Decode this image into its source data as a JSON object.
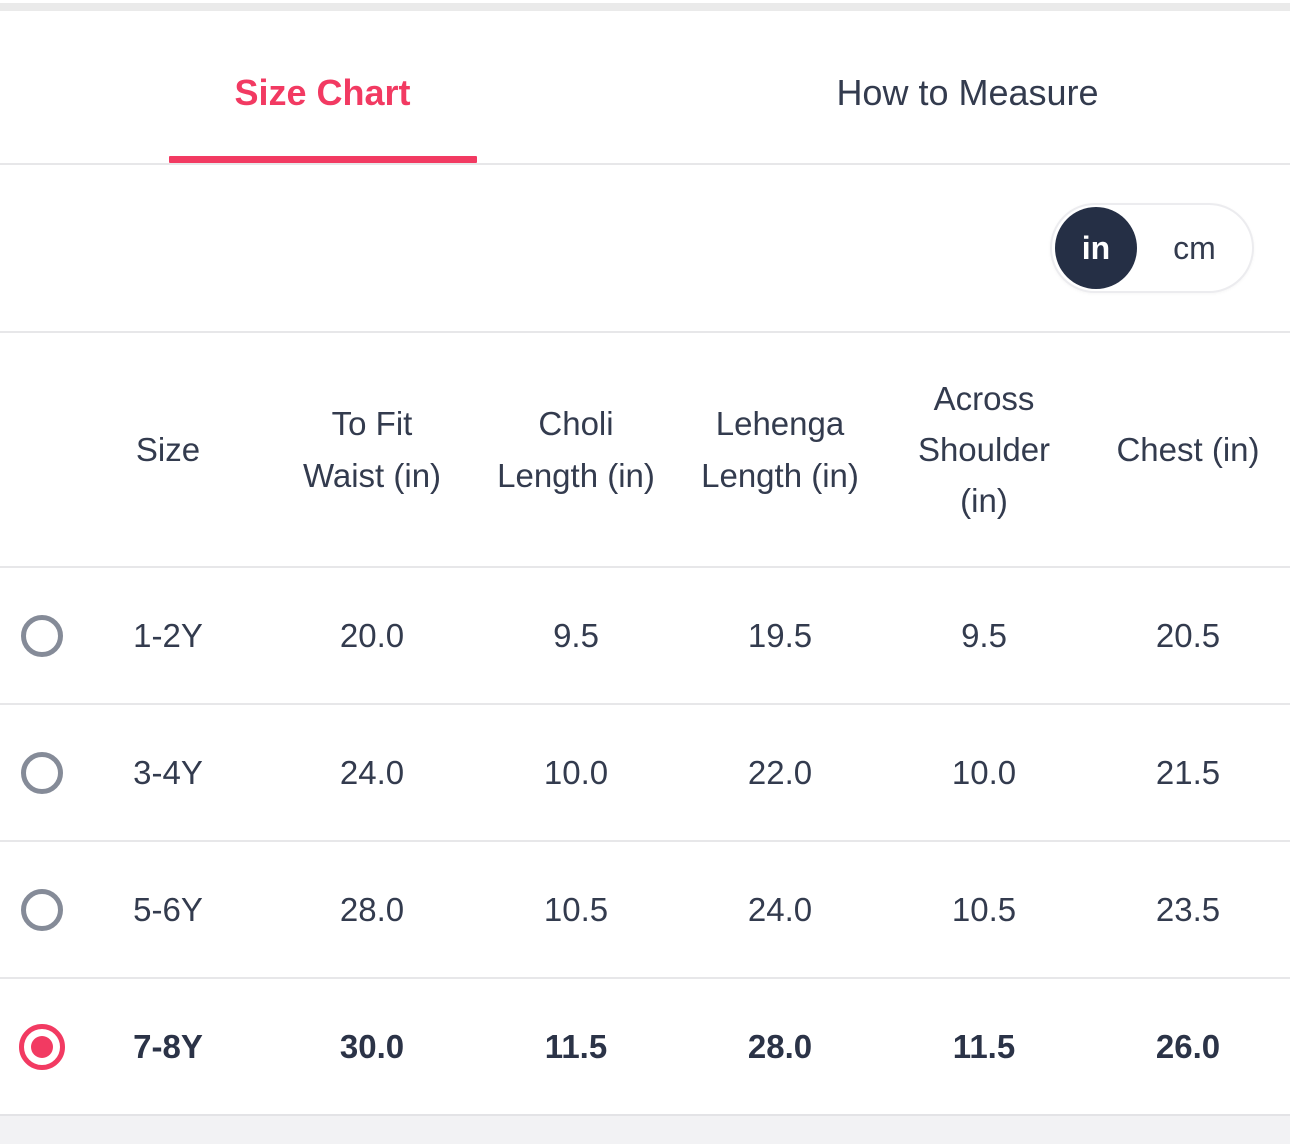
{
  "tabs": [
    {
      "label": "Size Chart",
      "active": true
    },
    {
      "label": "How to Measure",
      "active": false
    }
  ],
  "unit_toggle": {
    "selected": "in",
    "options": [
      {
        "label": "in",
        "selected": true
      },
      {
        "label": "cm",
        "selected": false
      }
    ]
  },
  "table": {
    "columns": [
      "Size",
      "To Fit Waist (in)",
      "Choli Length (in)",
      "Lehenga Length (in)",
      "Across Shoulder (in)",
      "Chest (in)"
    ],
    "rows": [
      {
        "size": "1-2Y",
        "to_fit_waist": "20.0",
        "choli_length": "9.5",
        "lehenga_length": "19.5",
        "across_shoulder": "9.5",
        "chest": "20.5",
        "selected": false
      },
      {
        "size": "3-4Y",
        "to_fit_waist": "24.0",
        "choli_length": "10.0",
        "lehenga_length": "22.0",
        "across_shoulder": "10.0",
        "chest": "21.5",
        "selected": false
      },
      {
        "size": "5-6Y",
        "to_fit_waist": "28.0",
        "choli_length": "10.5",
        "lehenga_length": "24.0",
        "across_shoulder": "10.5",
        "chest": "23.5",
        "selected": false
      },
      {
        "size": "7-8Y",
        "to_fit_waist": "30.0",
        "choli_length": "11.5",
        "lehenga_length": "28.0",
        "across_shoulder": "11.5",
        "chest": "26.0",
        "selected": true
      }
    ]
  },
  "colors": {
    "accent": "#F23A62",
    "text_dark": "#333B4E",
    "toggle_dark": "#252F45",
    "divider": "#E7E7E9",
    "radio_unselected": "#858B98"
  }
}
